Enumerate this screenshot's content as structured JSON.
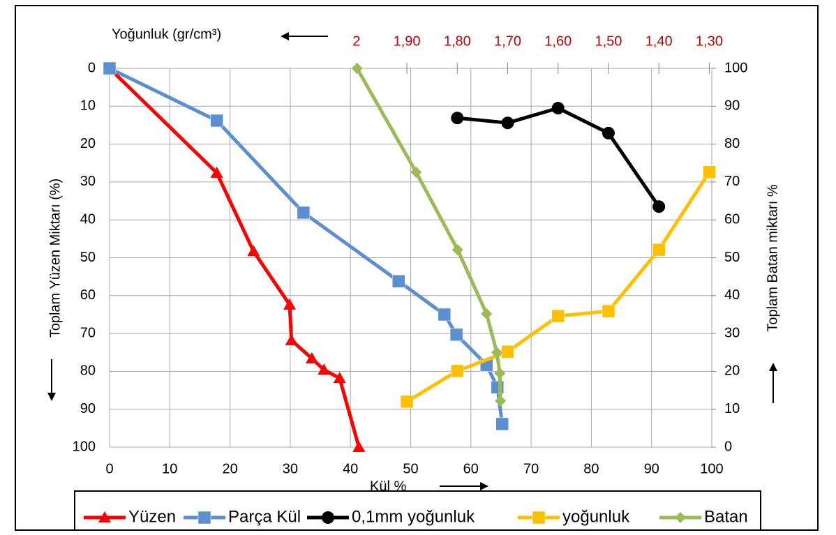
{
  "chart_data": {
    "type": "line",
    "x_label": "Kül %",
    "x2_label": "Yoğunluk  (gr/cm³)",
    "y_label": "Toplam Yüzen Miktarı (%)",
    "y2_label": "Toplam Batan miktarı %",
    "xlim": [
      0,
      100
    ],
    "xticks": [
      0,
      10,
      20,
      30,
      40,
      50,
      60,
      70,
      80,
      90,
      100
    ],
    "x2lim": [
      2.49,
      1.295
    ],
    "x2ticks": [
      2,
      {
        "value": 1.9,
        "label": "1,90"
      },
      {
        "value": 1.8,
        "label": "1,80"
      },
      {
        "value": 1.7,
        "label": "1,70"
      },
      {
        "value": 1.6,
        "label": "1,60"
      },
      {
        "value": 1.5,
        "label": "1,50"
      },
      {
        "value": 1.4,
        "label": "1,40"
      },
      {
        "value": 1.3,
        "label": "1,30"
      }
    ],
    "ylim": [
      0,
      100
    ],
    "yticks": [
      0,
      10,
      20,
      30,
      40,
      50,
      60,
      70,
      80,
      90,
      100
    ],
    "y2lim": [
      0,
      100
    ],
    "y2ticks": [
      0,
      10,
      20,
      30,
      40,
      50,
      60,
      70,
      80,
      90,
      100
    ],
    "grid": true,
    "series": [
      {
        "name": "Yüzen",
        "color": "#ff0000",
        "marker": "triangle",
        "x": [
          0,
          17.8,
          23.9,
          29.9,
          30.2,
          33.6,
          35.6,
          38.2,
          41.4
        ],
        "values": [
          0,
          27.6,
          48.3,
          62.4,
          71.8,
          76.6,
          79.6,
          81.8,
          100
        ]
      },
      {
        "name": "Parça Kül",
        "color": "#5b8fd0",
        "marker": "square",
        "x": [
          0,
          17.8,
          32.2,
          48.0,
          55.6,
          57.6,
          62.6,
          64.4,
          65.2
        ],
        "values": [
          0,
          13.8,
          38.1,
          56.2,
          65.0,
          70.3,
          78.3,
          84.2,
          93.9
        ]
      },
      {
        "name": "0,1mm yoğunluk",
        "color": "#000000",
        "marker": "circle",
        "xaxis": "x2",
        "x": [
          1.8,
          1.7,
          1.6,
          1.5,
          1.4
        ],
        "values": [
          13.1,
          14.4,
          10.5,
          17.1,
          36.5
        ]
      },
      {
        "name": "yoğunluk",
        "color": "#ffc000",
        "marker": "square",
        "xaxis": "x2",
        "x": [
          1.9,
          1.8,
          1.7,
          1.6,
          1.5,
          1.4,
          1.3
        ],
        "values": [
          88.0,
          79.9,
          74.8,
          65.4,
          64.1,
          47.9,
          27.4
        ]
      },
      {
        "name": "Batan",
        "color": "#9bbb59",
        "marker": "diamond",
        "axis": "y2",
        "x": [
          41.1,
          50.9,
          57.8,
          62.6,
          64.3,
          64.8,
          64.9
        ],
        "values": [
          100,
          72.6,
          52.1,
          35.2,
          25.0,
          19.5,
          12.2
        ]
      }
    ]
  }
}
